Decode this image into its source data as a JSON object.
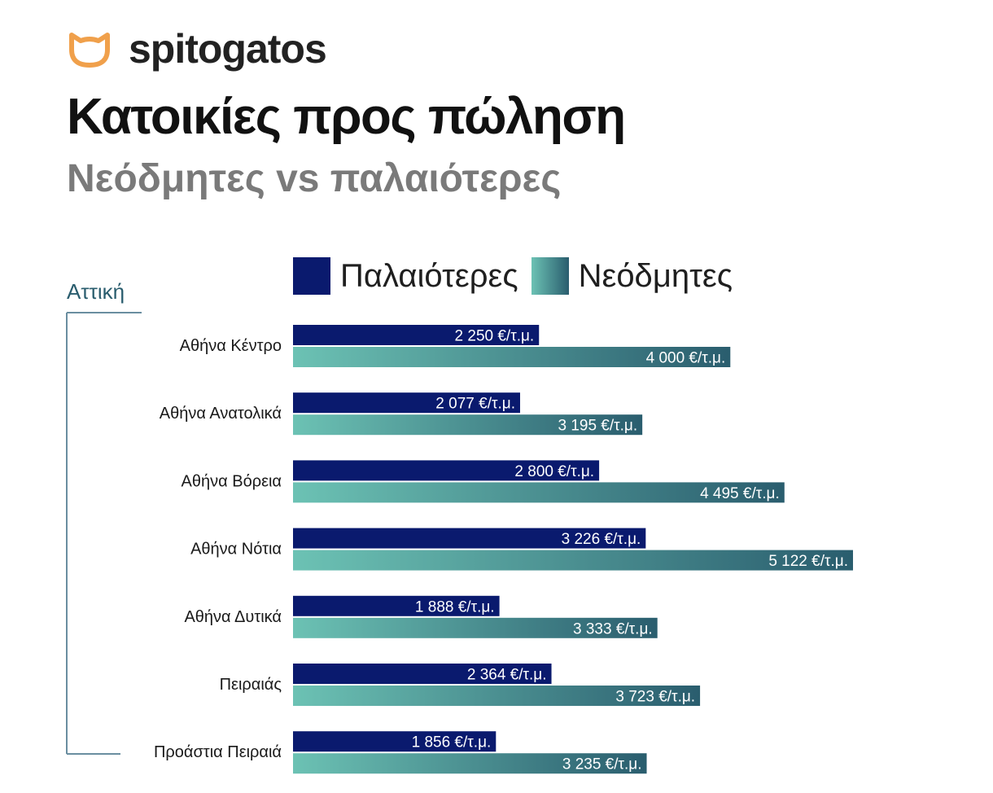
{
  "brand": {
    "name": "spitogatos",
    "logo_icon": "cat-face-icon"
  },
  "header": {
    "title": "Κατοικίες προς πώληση",
    "subtitle": "Νεόδμητες vs παλαιότερες"
  },
  "region": "Αττική",
  "colors": {
    "old": "#0a1a6e",
    "new_start": "#6cc2b4",
    "new_end": "#2a5d6e",
    "logo": "#f0a04b",
    "bracket": "#6a8ea0"
  },
  "legend": [
    {
      "key": "old",
      "label": "Παλαιότερες"
    },
    {
      "key": "new",
      "label": "Νεόδμητες"
    }
  ],
  "chart_data": {
    "type": "bar",
    "orientation": "horizontal",
    "title": "Κατοικίες προς πώληση",
    "subtitle": "Νεόδμητες vs παλαιότερες",
    "categories": [
      "Αθήνα Κέντρο",
      "Αθήνα Ανατολικά",
      "Αθήνα Βόρεια",
      "Αθήνα Νότια",
      "Αθήνα Δυτικά",
      "Πειραιάς",
      "Προάστια Πειραιά"
    ],
    "series": [
      {
        "name": "Παλαιότερες",
        "key": "old",
        "values": [
          2250,
          2077,
          2800,
          3226,
          1888,
          2364,
          1856
        ],
        "labels": [
          "2 250 €/τ.μ.",
          "2 077 €/τ.μ.",
          "2 800 €/τ.μ.",
          "3 226 €/τ.μ.",
          "1 888 €/τ.μ.",
          "2 364 €/τ.μ.",
          "1 856 €/τ.μ."
        ]
      },
      {
        "name": "Νεόδμητες",
        "key": "new",
        "values": [
          4000,
          3195,
          4495,
          5122,
          3333,
          3723,
          3235
        ],
        "labels": [
          "4 000 €/τ.μ.",
          "3 195 €/τ.μ.",
          "4 495 €/τ.μ.",
          "5 122 €/τ.μ.",
          "3 333 €/τ.μ.",
          "3 723 €/τ.μ.",
          "3 235 €/τ.μ."
        ]
      }
    ],
    "xlim": [
      0,
      5122
    ],
    "grid": false,
    "legend_position": "top"
  }
}
